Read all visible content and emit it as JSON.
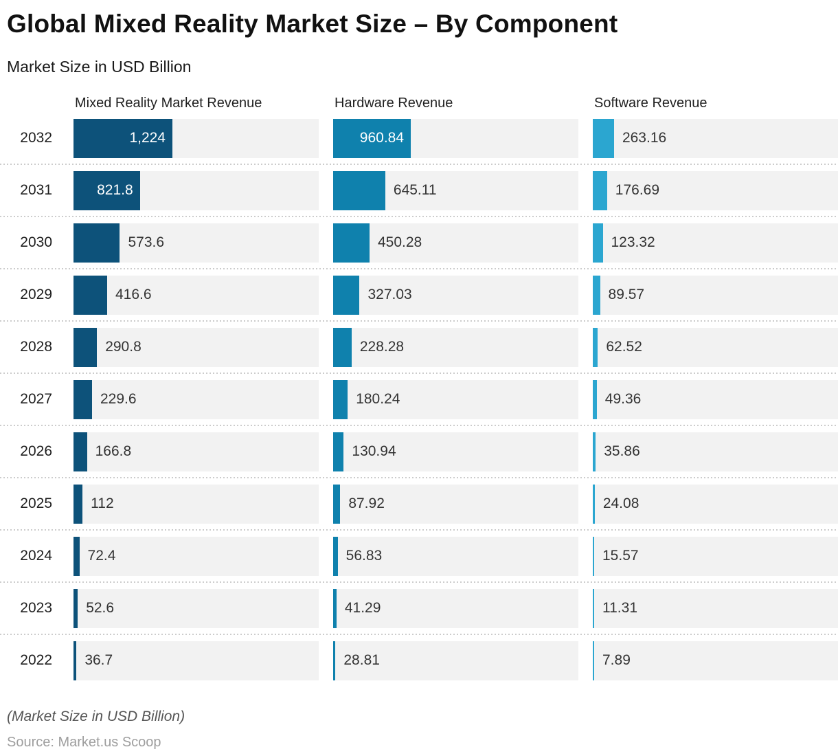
{
  "header": {
    "title": "Global Mixed Reality Market Size – By Component",
    "subtitle": "Market Size in USD Billion"
  },
  "chart_data": {
    "type": "bar",
    "orientation": "horizontal",
    "value_unit": "USD Billion",
    "categories": [
      "2032",
      "2031",
      "2030",
      "2029",
      "2028",
      "2027",
      "2026",
      "2025",
      "2024",
      "2023",
      "2022"
    ],
    "series": [
      {
        "name": "Mixed Reality Market Revenue",
        "color": "#0d527a",
        "values": [
          1224,
          821.8,
          573.6,
          416.6,
          290.8,
          229.6,
          166.8,
          112,
          72.4,
          52.6,
          36.7
        ],
        "labels": [
          "1,224",
          "821.8",
          "573.6",
          "416.6",
          "290.8",
          "229.6",
          "166.8",
          "112",
          "72.4",
          "52.6",
          "36.7"
        ]
      },
      {
        "name": "Hardware Revenue",
        "color": "#0f81ad",
        "values": [
          960.84,
          645.11,
          450.28,
          327.03,
          228.28,
          180.24,
          130.94,
          87.92,
          56.83,
          41.29,
          28.81
        ],
        "labels": [
          "960.84",
          "645.11",
          "450.28",
          "327.03",
          "228.28",
          "180.24",
          "130.94",
          "87.92",
          "56.83",
          "41.29",
          "28.81"
        ]
      },
      {
        "name": "Software Revenue",
        "color": "#2ba6d0",
        "values": [
          263.16,
          176.69,
          123.32,
          89.57,
          62.52,
          49.36,
          35.86,
          24.08,
          15.57,
          11.31,
          7.89
        ],
        "labels": [
          "263.16",
          "176.69",
          "123.32",
          "89.57",
          "62.52",
          "49.36",
          "35.86",
          "24.08",
          "15.57",
          "11.31",
          "7.89"
        ]
      }
    ],
    "track_color": "#f2f2f2",
    "separator_color": "#cccccc",
    "grid": "off",
    "legend_position": "column-headers"
  },
  "footer": {
    "note": "(Market Size in USD Billion)",
    "source": "Source: Market.us Scoop"
  }
}
